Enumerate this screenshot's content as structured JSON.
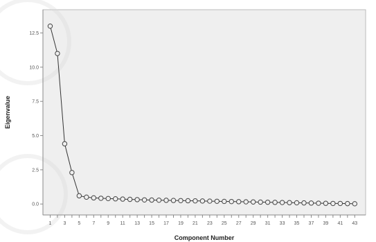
{
  "chart_data": {
    "type": "line",
    "title": "",
    "xlabel": "Component Number",
    "ylabel": "Eigenvalue",
    "x": [
      1,
      2,
      3,
      4,
      5,
      6,
      7,
      8,
      9,
      10,
      11,
      12,
      13,
      14,
      15,
      16,
      17,
      18,
      19,
      20,
      21,
      22,
      23,
      24,
      25,
      26,
      27,
      28,
      29,
      30,
      31,
      32,
      33,
      34,
      35,
      36,
      37,
      38,
      39,
      40,
      41,
      42,
      43
    ],
    "x_tick_labels": [
      "1",
      "3",
      "5",
      "7",
      "9",
      "11",
      "13",
      "15",
      "17",
      "19",
      "21",
      "23",
      "25",
      "27",
      "29",
      "31",
      "33",
      "35",
      "37",
      "39",
      "41",
      "43"
    ],
    "y_tick_values": [
      0.0,
      2.5,
      5.0,
      7.5,
      10.0,
      12.5
    ],
    "y_tick_labels": [
      "0.0",
      "2.5",
      "5.0",
      "7.5",
      "10.0",
      "12.5"
    ],
    "ylim": [
      -0.8,
      14.2
    ],
    "xlim": [
      0,
      44.5
    ],
    "grid": false,
    "series": [
      {
        "values": [
          13.0,
          11.0,
          4.4,
          2.3,
          0.6,
          0.5,
          0.45,
          0.42,
          0.4,
          0.38,
          0.36,
          0.34,
          0.32,
          0.3,
          0.29,
          0.28,
          0.27,
          0.26,
          0.25,
          0.24,
          0.23,
          0.22,
          0.21,
          0.2,
          0.19,
          0.18,
          0.17,
          0.16,
          0.15,
          0.14,
          0.13,
          0.12,
          0.11,
          0.1,
          0.09,
          0.08,
          0.07,
          0.06,
          0.05,
          0.04,
          0.04,
          0.03,
          0.02
        ]
      }
    ]
  },
  "colors": {
    "plot_background": "#efefef",
    "line": "#333333",
    "marker_stroke": "#444444",
    "marker_fill": "#efefef",
    "axis": "#888888"
  }
}
